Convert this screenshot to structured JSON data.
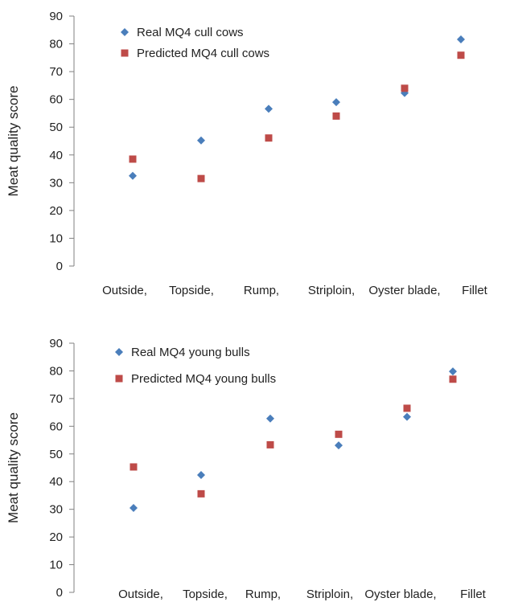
{
  "colors": {
    "real": "#4a7ebb",
    "predicted": "#be4b48",
    "axis": "#808080"
  },
  "chart_data": [
    {
      "type": "scatter",
      "title": "",
      "xlabel": "",
      "ylabel": "Meat quality score",
      "ylim": [
        0,
        90
      ],
      "yticks": [
        "0",
        "10",
        "20",
        "30",
        "40",
        "50",
        "60",
        "70",
        "80",
        "90"
      ],
      "categories": [
        "Outside,",
        "Topside,",
        "Rump,",
        "Striploin,",
        "Oyster blade,",
        "Fillet"
      ],
      "grid": false,
      "legend_position": "top-left",
      "series": [
        {
          "name": "Real MQ4 cull cows",
          "marker": "diamond",
          "values": [
            32.5,
            45.2,
            56.6,
            59.0,
            62.3,
            81.6
          ]
        },
        {
          "name": "Predicted MQ4 cull cows",
          "marker": "square",
          "values": [
            38.5,
            31.5,
            46.1,
            54.0,
            64.0,
            75.9
          ]
        }
      ]
    },
    {
      "type": "scatter",
      "title": "",
      "xlabel": "",
      "ylabel": "Meat quality score",
      "ylim": [
        0,
        90
      ],
      "yticks": [
        "0",
        "10",
        "20",
        "30",
        "40",
        "50",
        "60",
        "70",
        "80",
        "90"
      ],
      "categories": [
        "Outside,",
        "Topside,",
        "Rump,",
        "Striploin,",
        "Oyster blade,",
        "Fillet"
      ],
      "grid": false,
      "legend_position": "top-left",
      "series": [
        {
          "name": "Real MQ4 young bulls",
          "marker": "diamond",
          "values": [
            30.5,
            42.4,
            62.8,
            53.1,
            63.4,
            79.8
          ]
        },
        {
          "name": "Predicted MQ4 young bulls",
          "marker": "square",
          "values": [
            45.3,
            35.6,
            53.3,
            57.1,
            66.5,
            77.0
          ]
        }
      ]
    }
  ]
}
